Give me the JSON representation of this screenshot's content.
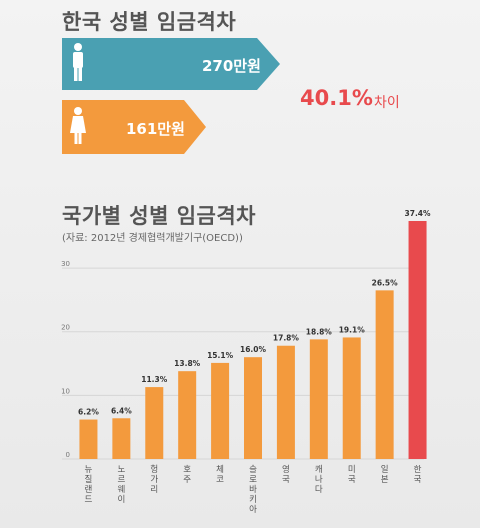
{
  "header": {
    "title": "한국 성별 임금격차",
    "male_value": "270만원",
    "female_value": "161만원",
    "gap_percent": "40.1%",
    "gap_suffix": "차이"
  },
  "section": {
    "title": "국가별 성별 임금격차",
    "subtitle": "(자료: 2012년 경제협력개발기구(OECD))"
  },
  "colors": {
    "male_bar": "#4aa0b2",
    "female_bar": "#f39a3d",
    "bar": "#f39a3d",
    "highlight": "#e84a4d"
  },
  "chart_data": {
    "type": "bar",
    "categories": [
      "뉴질랜드",
      "노르웨이",
      "헝가리",
      "호주",
      "체코",
      "슬로바키아",
      "영국",
      "캐나다",
      "미국",
      "일본",
      "한국"
    ],
    "values": [
      6.2,
      6.4,
      11.3,
      13.8,
      15.1,
      16.0,
      17.8,
      18.8,
      19.1,
      26.5,
      37.4
    ],
    "data_labels": [
      "6.2%",
      "6.4%",
      "11.3%",
      "13.8%",
      "15.1%",
      "16.0%",
      "17.8%",
      "18.8%",
      "19.1%",
      "26.5%",
      "37.4%"
    ],
    "highlight_category": "한국",
    "y_ticks": [
      "0",
      "10",
      "20",
      "30"
    ],
    "ylim": [
      0,
      37.4
    ],
    "grid": true
  }
}
